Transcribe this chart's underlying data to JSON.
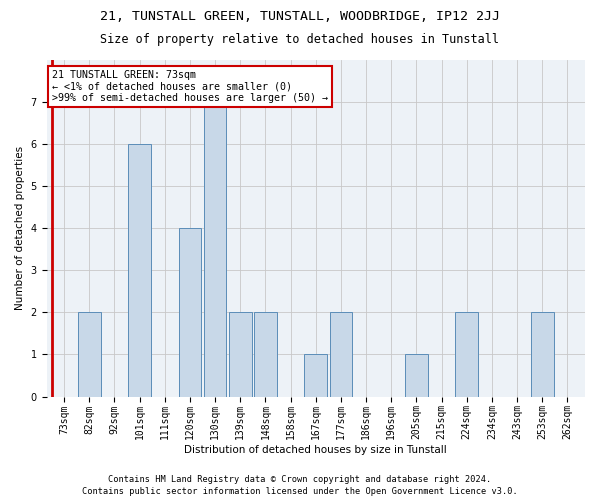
{
  "title": "21, TUNSTALL GREEN, TUNSTALL, WOODBRIDGE, IP12 2JJ",
  "subtitle": "Size of property relative to detached houses in Tunstall",
  "xlabel": "Distribution of detached houses by size in Tunstall",
  "ylabel": "Number of detached properties",
  "categories": [
    "73sqm",
    "82sqm",
    "92sqm",
    "101sqm",
    "111sqm",
    "120sqm",
    "130sqm",
    "139sqm",
    "148sqm",
    "158sqm",
    "167sqm",
    "177sqm",
    "186sqm",
    "196sqm",
    "205sqm",
    "215sqm",
    "224sqm",
    "234sqm",
    "243sqm",
    "253sqm",
    "262sqm"
  ],
  "values": [
    0,
    2,
    0,
    6,
    0,
    4,
    7,
    2,
    2,
    0,
    1,
    2,
    0,
    0,
    1,
    0,
    2,
    0,
    0,
    2,
    0
  ],
  "bar_color": "#c8d8e8",
  "bar_edge_color": "#5b8db8",
  "highlight_line_color": "#cc0000",
  "annotation_text": "21 TUNSTALL GREEN: 73sqm\n← <1% of detached houses are smaller (0)\n>99% of semi-detached houses are larger (50) →",
  "annotation_box_color": "#ffffff",
  "annotation_box_edge_color": "#cc0000",
  "ylim": [
    0,
    8
  ],
  "yticks": [
    0,
    1,
    2,
    3,
    4,
    5,
    6,
    7
  ],
  "footer_line1": "Contains HM Land Registry data © Crown copyright and database right 2024.",
  "footer_line2": "Contains public sector information licensed under the Open Government Licence v3.0.",
  "background_color": "#edf2f7",
  "grid_color": "#c8c8c8",
  "title_fontsize": 9.5,
  "subtitle_fontsize": 8.5,
  "axis_label_fontsize": 7.5,
  "tick_fontsize": 7,
  "annotation_fontsize": 7.2,
  "footer_fontsize": 6.2
}
